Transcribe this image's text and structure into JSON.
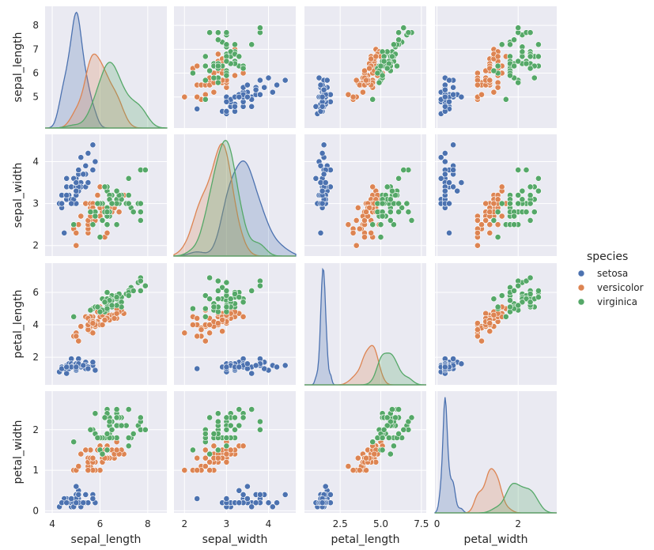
{
  "chart_data": {
    "type": "scatter",
    "variables": [
      "sepal_length",
      "sepal_width",
      "petal_length",
      "petal_width"
    ],
    "labels": {
      "sepal_length": "sepal_length",
      "sepal_width": "sepal_width",
      "petal_length": "petal_length",
      "petal_width": "petal_width"
    },
    "ranges": {
      "sepal_length": [
        3.7,
        8.8
      ],
      "sepal_width": [
        1.75,
        4.65
      ],
      "petal_length": [
        0.3,
        7.8
      ],
      "petal_width": [
        -0.05,
        2.95
      ]
    },
    "row_ticks": {
      "sepal_length": [
        5,
        6,
        7,
        8
      ],
      "sepal_width": [
        2,
        3,
        4
      ],
      "petal_length": [
        2,
        4,
        6
      ],
      "petal_width": [
        0,
        1,
        2
      ]
    },
    "col_ticks": {
      "sepal_length": [
        4,
        6,
        8
      ],
      "sepal_width": [
        2,
        3,
        4
      ],
      "petal_length": [
        2.5,
        5.0,
        7.5
      ],
      "petal_width": [
        0,
        2
      ]
    },
    "row_tick_labels": {
      "sepal_length": [
        "5",
        "6",
        "7",
        "8"
      ],
      "sepal_width": [
        "2",
        "3",
        "4"
      ],
      "petal_length": [
        "2",
        "4",
        "6"
      ],
      "petal_width": [
        "0",
        "1",
        "2"
      ]
    },
    "col_tick_labels": {
      "sepal_length": [
        "4",
        "6",
        "8"
      ],
      "sepal_width": [
        "2",
        "3",
        "4"
      ],
      "petal_length": [
        "2.5",
        "5.0",
        "7.5"
      ],
      "petal_width": [
        "0",
        "2"
      ]
    },
    "legend": {
      "title": "species",
      "position": "right"
    },
    "grid": true,
    "series": [
      {
        "name": "setosa",
        "color": "#4c72b0",
        "points": [
          [
            5.1,
            3.5,
            1.4,
            0.2
          ],
          [
            4.9,
            3.0,
            1.4,
            0.2
          ],
          [
            4.7,
            3.2,
            1.3,
            0.2
          ],
          [
            4.6,
            3.1,
            1.5,
            0.2
          ],
          [
            5.0,
            3.6,
            1.4,
            0.2
          ],
          [
            5.4,
            3.9,
            1.7,
            0.4
          ],
          [
            4.6,
            3.4,
            1.4,
            0.3
          ],
          [
            5.0,
            3.4,
            1.5,
            0.2
          ],
          [
            4.4,
            2.9,
            1.4,
            0.2
          ],
          [
            4.9,
            3.1,
            1.5,
            0.1
          ],
          [
            5.4,
            3.7,
            1.5,
            0.2
          ],
          [
            4.8,
            3.4,
            1.6,
            0.2
          ],
          [
            4.8,
            3.0,
            1.4,
            0.1
          ],
          [
            4.3,
            3.0,
            1.1,
            0.1
          ],
          [
            5.8,
            4.0,
            1.2,
            0.2
          ],
          [
            5.7,
            4.4,
            1.5,
            0.4
          ],
          [
            5.4,
            3.9,
            1.3,
            0.4
          ],
          [
            5.1,
            3.5,
            1.4,
            0.3
          ],
          [
            5.7,
            3.8,
            1.7,
            0.3
          ],
          [
            5.1,
            3.8,
            1.5,
            0.3
          ],
          [
            5.4,
            3.4,
            1.7,
            0.2
          ],
          [
            5.1,
            3.7,
            1.5,
            0.4
          ],
          [
            4.6,
            3.6,
            1.0,
            0.2
          ],
          [
            5.1,
            3.3,
            1.7,
            0.5
          ],
          [
            4.8,
            3.4,
            1.9,
            0.2
          ],
          [
            5.0,
            3.0,
            1.6,
            0.2
          ],
          [
            5.0,
            3.4,
            1.6,
            0.4
          ],
          [
            5.2,
            3.5,
            1.5,
            0.2
          ],
          [
            5.2,
            3.4,
            1.4,
            0.2
          ],
          [
            4.7,
            3.2,
            1.6,
            0.2
          ],
          [
            4.8,
            3.1,
            1.6,
            0.2
          ],
          [
            5.4,
            3.4,
            1.5,
            0.4
          ],
          [
            5.2,
            4.1,
            1.5,
            0.1
          ],
          [
            5.5,
            4.2,
            1.4,
            0.2
          ],
          [
            4.9,
            3.1,
            1.5,
            0.2
          ],
          [
            5.0,
            3.2,
            1.2,
            0.2
          ],
          [
            5.5,
            3.5,
            1.3,
            0.2
          ],
          [
            4.9,
            3.6,
            1.4,
            0.1
          ],
          [
            4.4,
            3.0,
            1.3,
            0.2
          ],
          [
            5.1,
            3.4,
            1.5,
            0.2
          ],
          [
            5.0,
            3.5,
            1.3,
            0.3
          ],
          [
            4.5,
            2.3,
            1.3,
            0.3
          ],
          [
            4.4,
            3.2,
            1.3,
            0.2
          ],
          [
            5.0,
            3.5,
            1.6,
            0.6
          ],
          [
            5.1,
            3.8,
            1.9,
            0.4
          ],
          [
            4.8,
            3.0,
            1.4,
            0.3
          ],
          [
            5.1,
            3.8,
            1.6,
            0.2
          ],
          [
            4.6,
            3.2,
            1.4,
            0.2
          ],
          [
            5.3,
            3.7,
            1.5,
            0.2
          ],
          [
            5.0,
            3.3,
            1.4,
            0.2
          ]
        ]
      },
      {
        "name": "versicolor",
        "color": "#dd8452",
        "points": [
          [
            7.0,
            3.2,
            4.7,
            1.4
          ],
          [
            6.4,
            3.2,
            4.5,
            1.5
          ],
          [
            6.9,
            3.1,
            4.9,
            1.5
          ],
          [
            5.5,
            2.3,
            4.0,
            1.3
          ],
          [
            6.5,
            2.8,
            4.6,
            1.5
          ],
          [
            5.7,
            2.8,
            4.5,
            1.3
          ],
          [
            6.3,
            3.3,
            4.7,
            1.6
          ],
          [
            4.9,
            2.4,
            3.3,
            1.0
          ],
          [
            6.6,
            2.9,
            4.6,
            1.3
          ],
          [
            5.2,
            2.7,
            3.9,
            1.4
          ],
          [
            5.0,
            2.0,
            3.5,
            1.0
          ],
          [
            5.9,
            3.0,
            4.2,
            1.5
          ],
          [
            6.0,
            2.2,
            4.0,
            1.0
          ],
          [
            6.1,
            2.9,
            4.7,
            1.4
          ],
          [
            5.6,
            2.9,
            3.6,
            1.3
          ],
          [
            6.7,
            3.1,
            4.4,
            1.4
          ],
          [
            5.6,
            3.0,
            4.5,
            1.5
          ],
          [
            5.8,
            2.7,
            4.1,
            1.0
          ],
          [
            6.2,
            2.2,
            4.5,
            1.5
          ],
          [
            5.6,
            2.5,
            3.9,
            1.1
          ],
          [
            5.9,
            3.2,
            4.8,
            1.8
          ],
          [
            6.1,
            2.8,
            4.0,
            1.3
          ],
          [
            6.3,
            2.5,
            4.9,
            1.5
          ],
          [
            6.1,
            2.8,
            4.7,
            1.2
          ],
          [
            6.4,
            2.9,
            4.3,
            1.3
          ],
          [
            6.6,
            3.0,
            4.4,
            1.4
          ],
          [
            6.8,
            2.8,
            4.8,
            1.4
          ],
          [
            6.7,
            3.0,
            5.0,
            1.7
          ],
          [
            6.0,
            2.9,
            4.5,
            1.5
          ],
          [
            5.7,
            2.6,
            3.5,
            1.0
          ],
          [
            5.5,
            2.4,
            3.8,
            1.1
          ],
          [
            5.5,
            2.4,
            3.7,
            1.0
          ],
          [
            5.8,
            2.7,
            3.9,
            1.2
          ],
          [
            6.0,
            2.7,
            5.1,
            1.6
          ],
          [
            5.4,
            3.0,
            4.5,
            1.5
          ],
          [
            6.0,
            3.4,
            4.5,
            1.6
          ],
          [
            6.7,
            3.1,
            4.7,
            1.5
          ],
          [
            6.3,
            2.3,
            4.4,
            1.3
          ],
          [
            5.6,
            3.0,
            4.1,
            1.3
          ],
          [
            5.5,
            2.5,
            4.0,
            1.3
          ],
          [
            5.5,
            2.6,
            4.4,
            1.2
          ],
          [
            6.1,
            3.0,
            4.6,
            1.4
          ],
          [
            5.8,
            2.6,
            4.0,
            1.2
          ],
          [
            5.0,
            2.3,
            3.3,
            1.0
          ],
          [
            5.6,
            2.7,
            4.2,
            1.3
          ],
          [
            5.7,
            3.0,
            4.2,
            1.2
          ],
          [
            5.7,
            2.9,
            4.2,
            1.3
          ],
          [
            6.2,
            2.9,
            4.3,
            1.3
          ],
          [
            5.1,
            2.5,
            3.0,
            1.1
          ],
          [
            5.7,
            2.8,
            4.1,
            1.3
          ]
        ]
      },
      {
        "name": "virginica",
        "color": "#55a868",
        "points": [
          [
            6.3,
            3.3,
            6.0,
            2.5
          ],
          [
            5.8,
            2.7,
            5.1,
            1.9
          ],
          [
            7.1,
            3.0,
            5.9,
            2.1
          ],
          [
            6.3,
            2.9,
            5.6,
            1.8
          ],
          [
            6.5,
            3.0,
            5.8,
            2.2
          ],
          [
            7.6,
            3.0,
            6.6,
            2.1
          ],
          [
            4.9,
            2.5,
            4.5,
            1.7
          ],
          [
            7.3,
            2.9,
            6.3,
            1.8
          ],
          [
            6.7,
            2.5,
            5.8,
            1.8
          ],
          [
            7.2,
            3.6,
            6.1,
            2.5
          ],
          [
            6.5,
            3.2,
            5.1,
            2.0
          ],
          [
            6.4,
            2.7,
            5.3,
            1.9
          ],
          [
            6.8,
            3.0,
            5.5,
            2.1
          ],
          [
            5.7,
            2.5,
            5.0,
            2.0
          ],
          [
            5.8,
            2.8,
            5.1,
            2.4
          ],
          [
            6.4,
            3.2,
            5.3,
            2.3
          ],
          [
            6.5,
            3.0,
            5.5,
            1.8
          ],
          [
            7.7,
            3.8,
            6.7,
            2.2
          ],
          [
            7.7,
            2.6,
            6.9,
            2.3
          ],
          [
            6.0,
            2.2,
            5.0,
            1.5
          ],
          [
            6.9,
            3.2,
            5.7,
            2.3
          ],
          [
            5.6,
            2.8,
            4.9,
            2.0
          ],
          [
            7.7,
            2.8,
            6.7,
            2.0
          ],
          [
            6.3,
            2.7,
            4.9,
            1.8
          ],
          [
            6.7,
            3.3,
            5.7,
            2.1
          ],
          [
            7.2,
            3.2,
            6.0,
            1.8
          ],
          [
            6.2,
            2.8,
            4.8,
            1.8
          ],
          [
            6.1,
            3.0,
            4.9,
            1.8
          ],
          [
            6.4,
            2.8,
            5.6,
            2.1
          ],
          [
            7.2,
            3.0,
            5.8,
            1.6
          ],
          [
            7.4,
            2.8,
            6.1,
            1.9
          ],
          [
            7.9,
            3.8,
            6.4,
            2.0
          ],
          [
            6.4,
            2.8,
            5.6,
            2.2
          ],
          [
            6.3,
            2.8,
            5.1,
            1.5
          ],
          [
            6.1,
            2.6,
            5.6,
            1.4
          ],
          [
            7.7,
            3.0,
            6.1,
            2.3
          ],
          [
            6.3,
            3.4,
            5.6,
            2.4
          ],
          [
            6.4,
            3.1,
            5.5,
            1.8
          ],
          [
            6.0,
            3.0,
            4.8,
            1.8
          ],
          [
            6.9,
            3.1,
            5.4,
            2.1
          ],
          [
            6.7,
            3.1,
            5.6,
            2.4
          ],
          [
            6.9,
            3.1,
            5.1,
            2.3
          ],
          [
            5.8,
            2.7,
            5.1,
            1.9
          ],
          [
            6.8,
            3.2,
            5.9,
            2.3
          ],
          [
            6.7,
            3.3,
            5.7,
            2.5
          ],
          [
            6.7,
            3.0,
            5.2,
            2.3
          ],
          [
            6.3,
            2.5,
            5.0,
            1.9
          ],
          [
            6.5,
            3.0,
            5.2,
            2.0
          ],
          [
            6.2,
            3.4,
            5.4,
            2.3
          ],
          [
            5.9,
            3.0,
            5.1,
            1.8
          ]
        ]
      }
    ]
  }
}
